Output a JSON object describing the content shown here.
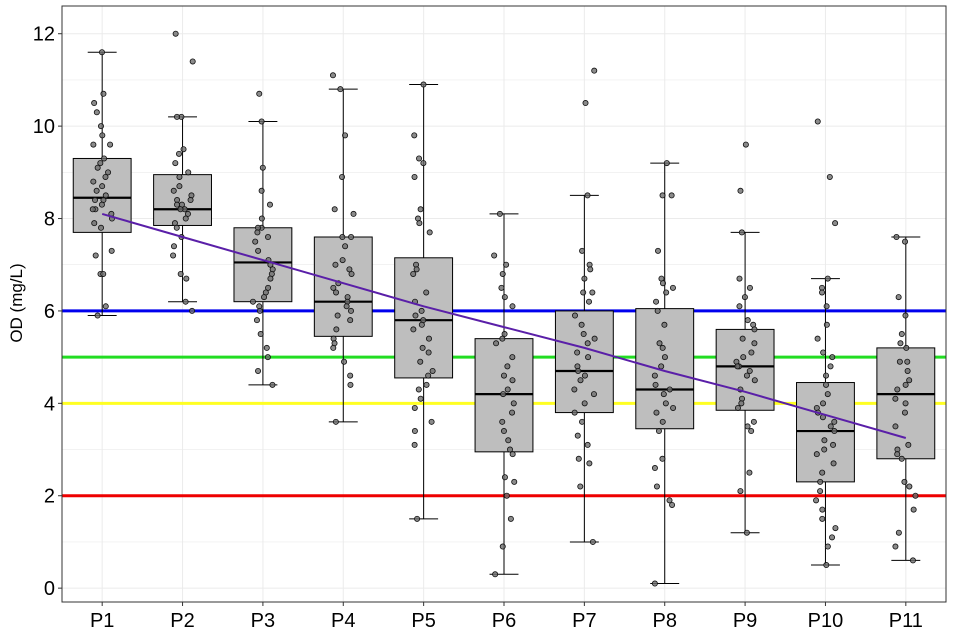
{
  "chart_data": {
    "type": "box",
    "ylabel": "OD (mg/L)",
    "xlabel": "",
    "ylim": [
      -0.3,
      12.6
    ],
    "yticks": [
      0,
      2,
      4,
      6,
      8,
      10,
      12
    ],
    "grid": true,
    "categories": [
      "P1",
      "P2",
      "P3",
      "P4",
      "P5",
      "P6",
      "P7",
      "P8",
      "P9",
      "P10",
      "P11"
    ],
    "boxes": [
      {
        "name": "P1",
        "whisker_low": 5.9,
        "q1": 7.7,
        "median": 8.45,
        "q3": 9.3,
        "whisker_high": 11.6
      },
      {
        "name": "P2",
        "whisker_low": 6.2,
        "q1": 7.85,
        "median": 8.2,
        "q3": 8.95,
        "whisker_high": 10.2
      },
      {
        "name": "P3",
        "whisker_low": 4.4,
        "q1": 6.2,
        "median": 7.05,
        "q3": 7.8,
        "whisker_high": 10.1
      },
      {
        "name": "P4",
        "whisker_low": 3.6,
        "q1": 5.45,
        "median": 6.2,
        "q3": 7.6,
        "whisker_high": 10.8
      },
      {
        "name": "P5",
        "whisker_low": 1.5,
        "q1": 4.55,
        "median": 5.8,
        "q3": 7.15,
        "whisker_high": 10.9
      },
      {
        "name": "P6",
        "whisker_low": 0.3,
        "q1": 2.95,
        "median": 4.2,
        "q3": 5.4,
        "whisker_high": 8.1
      },
      {
        "name": "P7",
        "whisker_low": 1.0,
        "q1": 3.8,
        "median": 4.7,
        "q3": 6.0,
        "whisker_high": 8.5
      },
      {
        "name": "P8",
        "whisker_low": 0.1,
        "q1": 3.45,
        "median": 4.3,
        "q3": 6.05,
        "whisker_high": 9.2
      },
      {
        "name": "P9",
        "whisker_low": 1.2,
        "q1": 3.85,
        "median": 4.8,
        "q3": 5.6,
        "whisker_high": 7.7
      },
      {
        "name": "P10",
        "whisker_low": 0.5,
        "q1": 2.3,
        "median": 3.4,
        "q3": 4.45,
        "whisker_high": 6.7
      },
      {
        "name": "P11",
        "whisker_low": 0.6,
        "q1": 2.8,
        "median": 4.2,
        "q3": 5.2,
        "whisker_high": 7.6
      }
    ],
    "points": [
      [
        11.6,
        10.7,
        10.5,
        10.3,
        10.0,
        9.8,
        9.6,
        9.6,
        9.3,
        9.2,
        9.1,
        9.0,
        8.9,
        8.8,
        8.7,
        8.6,
        8.5,
        8.4,
        8.4,
        8.3,
        8.2,
        8.2,
        8.1,
        8.0,
        7.9,
        7.8,
        7.3,
        7.2,
        6.8,
        6.8,
        6.1,
        5.9
      ],
      [
        12.0,
        11.4,
        10.2,
        10.2,
        9.5,
        9.4,
        9.2,
        9.0,
        8.9,
        8.7,
        8.6,
        8.5,
        8.4,
        8.4,
        8.3,
        8.3,
        8.2,
        8.2,
        8.1,
        8.0,
        7.9,
        7.8,
        7.6,
        7.4,
        7.2,
        6.8,
        6.7,
        6.2,
        6.0
      ],
      [
        10.7,
        10.1,
        9.1,
        8.6,
        8.3,
        8.0,
        7.8,
        7.8,
        7.7,
        7.6,
        7.5,
        7.3,
        7.1,
        7.0,
        6.9,
        6.8,
        6.7,
        6.5,
        6.4,
        6.3,
        6.2,
        6.1,
        6.0,
        5.8,
        5.5,
        5.2,
        5.0,
        4.7,
        4.4
      ],
      [
        11.1,
        10.8,
        9.8,
        8.9,
        8.2,
        8.1,
        7.6,
        7.6,
        7.4,
        7.1,
        7.0,
        6.9,
        6.8,
        6.6,
        6.5,
        6.4,
        6.3,
        6.2,
        6.1,
        6.0,
        5.9,
        5.8,
        5.6,
        5.4,
        5.3,
        5.2,
        4.9,
        4.6,
        4.4,
        3.6
      ],
      [
        10.9,
        9.8,
        9.3,
        9.2,
        8.9,
        8.2,
        8.0,
        7.9,
        7.7,
        7.0,
        6.9,
        6.8,
        6.4,
        6.2,
        6.0,
        5.9,
        5.8,
        5.7,
        5.6,
        5.4,
        5.2,
        5.1,
        4.9,
        4.7,
        4.6,
        4.4,
        4.3,
        4.1,
        3.9,
        3.6,
        3.4,
        3.1,
        1.5
      ],
      [
        8.1,
        7.2,
        7.0,
        6.8,
        6.5,
        6.3,
        6.1,
        5.5,
        5.4,
        5.3,
        5.0,
        4.8,
        4.6,
        4.5,
        4.3,
        4.2,
        4.0,
        3.8,
        3.6,
        3.4,
        3.2,
        3.0,
        2.9,
        2.4,
        2.3,
        2.0,
        1.5,
        0.9,
        0.3
      ],
      [
        11.2,
        10.5,
        8.5,
        7.3,
        7.0,
        6.9,
        6.7,
        6.4,
        6.4,
        6.2,
        5.9,
        5.7,
        5.5,
        5.4,
        5.3,
        5.1,
        5.0,
        4.8,
        4.7,
        4.6,
        4.5,
        4.3,
        4.2,
        4.0,
        3.8,
        3.6,
        3.3,
        3.1,
        2.8,
        2.7,
        2.2,
        1.0
      ],
      [
        9.2,
        8.5,
        8.5,
        7.3,
        6.7,
        6.6,
        6.5,
        6.4,
        6.2,
        6.0,
        5.7,
        5.3,
        5.2,
        5.0,
        4.8,
        4.6,
        4.4,
        4.3,
        4.2,
        4.0,
        3.9,
        3.8,
        3.6,
        3.4,
        2.8,
        2.6,
        2.2,
        1.9,
        1.8,
        0.1
      ],
      [
        9.6,
        8.6,
        7.7,
        6.7,
        6.5,
        6.3,
        6.1,
        5.8,
        5.7,
        5.6,
        5.4,
        5.3,
        5.1,
        5.0,
        4.9,
        4.8,
        4.8,
        4.7,
        4.6,
        4.5,
        4.3,
        4.1,
        4.0,
        3.9,
        3.6,
        3.5,
        3.4,
        2.5,
        2.1,
        1.2
      ],
      [
        10.1,
        8.9,
        7.9,
        6.7,
        6.5,
        6.4,
        6.1,
        5.7,
        5.4,
        5.1,
        5.0,
        4.8,
        4.6,
        4.4,
        4.2,
        4.0,
        3.9,
        3.8,
        3.7,
        3.6,
        3.5,
        3.4,
        3.2,
        3.1,
        3.0,
        2.9,
        2.7,
        2.5,
        2.3,
        2.1,
        1.9,
        1.7,
        1.5,
        1.3,
        1.1,
        0.9,
        0.5
      ],
      [
        7.6,
        7.5,
        6.3,
        5.9,
        5.5,
        5.3,
        5.2,
        4.9,
        4.9,
        4.7,
        4.5,
        4.4,
        4.3,
        4.1,
        4.0,
        3.8,
        3.5,
        3.1,
        3.0,
        2.9,
        2.8,
        2.3,
        2.2,
        2.0,
        1.7,
        1.2,
        0.9,
        0.6
      ]
    ],
    "trend_line": [
      8.1,
      7.6,
      7.1,
      6.6,
      6.1,
      5.65,
      5.2,
      4.7,
      4.25,
      3.75,
      3.25
    ],
    "reference_lines": [
      {
        "value": 6,
        "color": "#0000EE"
      },
      {
        "value": 5,
        "color": "#22DD22"
      },
      {
        "value": 4,
        "color": "#FFFF22"
      },
      {
        "value": 2,
        "color": "#EE0000"
      }
    ],
    "colors": {
      "box_fill": "#BEBEBE",
      "point_fill": "#6E6E6E",
      "trend": "#5A1FA8",
      "grid": "#EBEBEB",
      "frame": "#333333"
    }
  }
}
